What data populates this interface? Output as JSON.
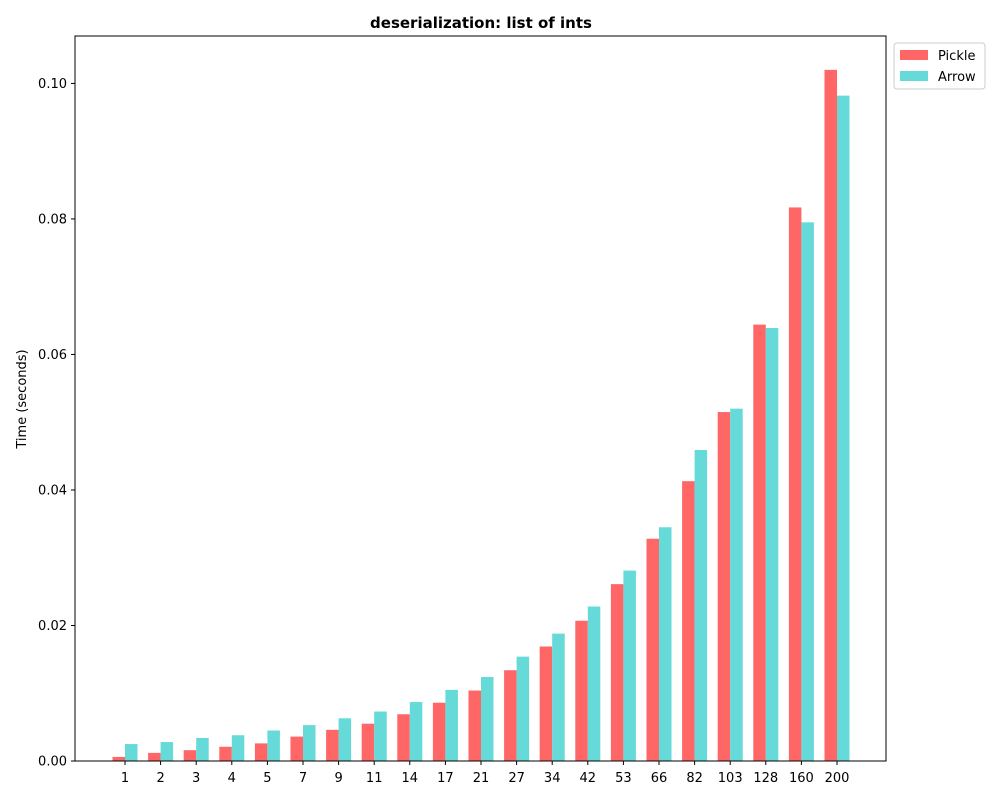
{
  "chart_data": {
    "type": "bar",
    "title": "deserialization: list of ints",
    "xlabel": "",
    "ylabel": "Time (seconds)",
    "ylim": [
      0,
      0.107
    ],
    "yticks": [
      0.0,
      0.02,
      0.04,
      0.06,
      0.08,
      0.1
    ],
    "ytick_labels": [
      "0.00",
      "0.02",
      "0.04",
      "0.06",
      "0.08",
      "0.10"
    ],
    "categories": [
      "1",
      "2",
      "3",
      "4",
      "5",
      "7",
      "9",
      "11",
      "14",
      "17",
      "21",
      "27",
      "34",
      "42",
      "53",
      "66",
      "82",
      "103",
      "128",
      "160",
      "200"
    ],
    "series": [
      {
        "name": "Pickle",
        "color": "#ff6666",
        "values": [
          0.0006,
          0.0012,
          0.0016,
          0.0021,
          0.0026,
          0.0036,
          0.0046,
          0.0055,
          0.0069,
          0.0086,
          0.0104,
          0.0134,
          0.0169,
          0.0207,
          0.0261,
          0.0328,
          0.0413,
          0.0515,
          0.0644,
          0.0817,
          0.102
        ]
      },
      {
        "name": "Arrow",
        "color": "#66d9d9",
        "values": [
          0.0025,
          0.0028,
          0.0034,
          0.0038,
          0.0045,
          0.0053,
          0.0063,
          0.0073,
          0.0087,
          0.0105,
          0.0124,
          0.0154,
          0.0188,
          0.0228,
          0.0281,
          0.0345,
          0.0459,
          0.052,
          0.0639,
          0.0795,
          0.0982
        ]
      }
    ],
    "legend": "top-right-outside",
    "grid": false
  }
}
